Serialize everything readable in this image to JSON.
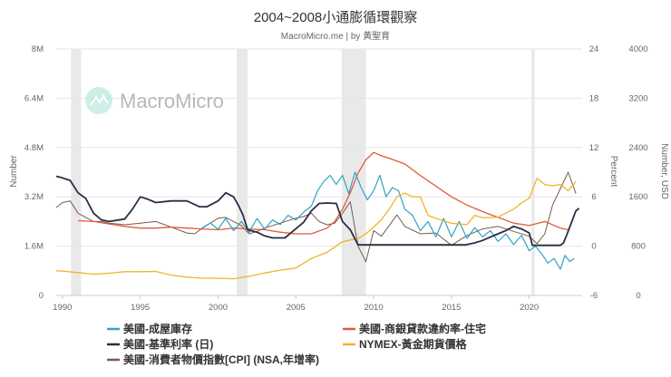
{
  "chart_data": {
    "type": "line",
    "title": "2004~2008小通膨循環觀察",
    "subtitle": "MacroMicro.me | by 黃聖育",
    "watermark": "MacroMicro",
    "x_range": [
      1989.6,
      2023.4
    ],
    "x_ticks": [
      1990,
      1995,
      2000,
      2005,
      2010,
      2015,
      2020
    ],
    "axes": {
      "left": {
        "label": "Number",
        "range": [
          0,
          8000000
        ],
        "ticks": [
          0,
          1600000,
          3200000,
          4800000,
          6400000,
          8000000
        ],
        "tick_labels": [
          "0",
          "1.6M",
          "3.2M",
          "4.8M",
          "6.4M",
          "8M"
        ]
      },
      "right1": {
        "label": "Percent",
        "range": [
          -6,
          24
        ],
        "ticks": [
          -6,
          0,
          6,
          12,
          18,
          24
        ],
        "tick_labels": [
          "-6",
          "0",
          "6",
          "12",
          "18",
          "24"
        ]
      },
      "right2": {
        "label": "Number, USD",
        "range": [
          0,
          4000
        ],
        "ticks": [
          0,
          800,
          1600,
          2400,
          3200,
          4000
        ],
        "tick_labels": [
          "0",
          "800",
          "1600",
          "2400",
          "3200",
          "4000"
        ]
      }
    },
    "recessions": [
      [
        1990.55,
        1991.2
      ],
      [
        2001.2,
        2001.9
      ],
      [
        2007.95,
        2009.5
      ],
      [
        2020.15,
        2020.35
      ]
    ],
    "series": [
      {
        "name": "美國-成屋庫存",
        "color": "#2fa4c6",
        "axis": "left",
        "width": 1.2,
        "x": [
          1999,
          1999.5,
          2000,
          2000.5,
          2001,
          2001.5,
          2002,
          2002.5,
          2003,
          2003.5,
          2004,
          2004.5,
          2005,
          2005.5,
          2006,
          2006.4,
          2006.8,
          2007.2,
          2007.6,
          2008,
          2008.4,
          2008.8,
          2009.2,
          2009.6,
          2010,
          2010.4,
          2010.8,
          2011.2,
          2011.6,
          2012,
          2012.5,
          2013,
          2013.5,
          2014,
          2014.5,
          2015,
          2015.5,
          2016,
          2016.5,
          2017,
          2017.5,
          2018,
          2018.5,
          2019,
          2019.5,
          2020,
          2020.4,
          2020.8,
          2021.2,
          2021.6,
          2022,
          2022.3,
          2022.6,
          2022.9
        ],
        "values": [
          2200000,
          2350000,
          2150000,
          2500000,
          2100000,
          2400000,
          2050000,
          2500000,
          2150000,
          2450000,
          2300000,
          2600000,
          2450000,
          2700000,
          2900000,
          3400000,
          3700000,
          3900000,
          3600000,
          3900000,
          3300000,
          4000000,
          3500000,
          3100000,
          3400000,
          3900000,
          3200000,
          3500000,
          3400000,
          2800000,
          2600000,
          2100000,
          2400000,
          1900000,
          2500000,
          1900000,
          2400000,
          1850000,
          2200000,
          1900000,
          2100000,
          1750000,
          2000000,
          1650000,
          1950000,
          1450000,
          1600000,
          1350000,
          1050000,
          1200000,
          850000,
          1300000,
          1100000,
          1200000
        ]
      },
      {
        "name": "美國-商銀貸款違約率-住宅",
        "color": "#e05a3a",
        "axis": "right1",
        "width": 1.3,
        "x": [
          1991,
          1992,
          1993,
          1994,
          1995,
          1996,
          1997,
          1998,
          1999,
          2000,
          2001,
          2002,
          2003,
          2004,
          2005,
          2006,
          2007,
          2007.5,
          2008,
          2008.5,
          2009,
          2009.5,
          2010,
          2010.5,
          2011,
          2012,
          2013,
          2014,
          2015,
          2016,
          2017,
          2018,
          2019,
          2020,
          2021,
          2022,
          2022.5
        ],
        "values": [
          3.1,
          3.0,
          2.7,
          2.4,
          2.2,
          2.2,
          2.3,
          2.2,
          2.1,
          2.0,
          2.2,
          2.1,
          2.0,
          1.7,
          1.5,
          1.5,
          2.2,
          3.0,
          4.5,
          6.5,
          8.9,
          10.5,
          11.4,
          11.0,
          10.7,
          10.0,
          8.6,
          7.3,
          6.0,
          5.0,
          4.2,
          3.5,
          2.8,
          2.5,
          3.0,
          2.2,
          2.0
        ]
      },
      {
        "name": "美國-基準利率 (日)",
        "color": "#2b2d42",
        "axis": "right1",
        "width": 1.8,
        "x": [
          1989.6,
          1990,
          1990.5,
          1991,
          1991.5,
          1992,
          1992.5,
          1993,
          1994,
          1994.5,
          1995,
          1995.5,
          1996,
          1997,
          1998,
          1998.8,
          1999.3,
          2000,
          2000.5,
          2001,
          2001.3,
          2001.6,
          2001.9,
          2002.5,
          2003,
          2003.5,
          2004.3,
          2004.8,
          2005.5,
          2006,
          2006.5,
          2007,
          2007.6,
          2008,
          2008.5,
          2009,
          2015.9,
          2016.5,
          2017,
          2017.5,
          2018,
          2018.5,
          2019,
          2019.5,
          2020,
          2020.2,
          2022,
          2022.2,
          2022.4,
          2022.6,
          2022.8,
          2023.0,
          2023.2
        ],
        "values": [
          8.5,
          8.3,
          8.0,
          6.5,
          5.8,
          4.0,
          3.2,
          3.0,
          3.3,
          4.5,
          6.0,
          5.7,
          5.3,
          5.5,
          5.5,
          4.8,
          4.8,
          5.5,
          6.5,
          6.0,
          5.0,
          3.8,
          2.0,
          1.7,
          1.25,
          1.0,
          1.0,
          1.8,
          2.9,
          4.3,
          5.2,
          5.25,
          5.2,
          3.0,
          2.0,
          0.15,
          0.15,
          0.4,
          0.7,
          1.1,
          1.5,
          1.9,
          2.4,
          2.1,
          1.6,
          0.1,
          0.1,
          0.4,
          1.3,
          2.3,
          3.3,
          4.3,
          4.6
        ]
      },
      {
        "name": "NYMEX-黃金期貨價格",
        "color": "#f0b429",
        "axis": "right2",
        "width": 1.3,
        "x": [
          1989.6,
          1990,
          1991,
          1992,
          1993,
          1994,
          1995,
          1996,
          1997,
          1998,
          1999,
          2000,
          2001,
          2002,
          2003,
          2004,
          2005,
          2006,
          2006.5,
          2007,
          2008,
          2008.5,
          2009,
          2009.5,
          2010,
          2010.5,
          2011,
          2011.5,
          2012,
          2012.5,
          2013,
          2013.5,
          2014,
          2015,
          2016,
          2016.5,
          2017,
          2018,
          2019,
          2019.5,
          2020,
          2020.5,
          2021,
          2021.5,
          2022,
          2022.5,
          2023
        ],
        "values": [
          400,
          395,
          370,
          345,
          360,
          385,
          385,
          390,
          330,
          295,
          280,
          280,
          270,
          310,
          365,
          410,
          445,
          600,
          650,
          700,
          870,
          900,
          920,
          1000,
          1110,
          1230,
          1400,
          1600,
          1660,
          1600,
          1600,
          1300,
          1250,
          1170,
          1150,
          1300,
          1260,
          1270,
          1400,
          1500,
          1580,
          1900,
          1800,
          1780,
          1800,
          1700,
          1850
        ]
      },
      {
        "name": "美國-消費者物價指數[CPI] (NSA,年增率)",
        "color": "#7a5a4a",
        "axis": "right1",
        "width": 1.0,
        "x": [
          1989.6,
          1990,
          1990.5,
          1991,
          1991.5,
          1992,
          1992.5,
          1993,
          1994,
          1995,
          1996,
          1997,
          1998,
          1998.5,
          1999,
          2000,
          2000.5,
          2001,
          2001.5,
          2002,
          2002.5,
          2003,
          2004,
          2005,
          2005.5,
          2006,
          2006.5,
          2007,
          2007.5,
          2008,
          2008.5,
          2009,
          2009.5,
          2010,
          2010.5,
          2011,
          2011.5,
          2012,
          2013,
          2014,
          2015,
          2016,
          2017,
          2018,
          2019,
          2020,
          2020.5,
          2021,
          2021.5,
          2022,
          2022.5,
          2023
        ],
        "values": [
          4.7,
          5.3,
          5.5,
          4.0,
          3.5,
          3.0,
          3.0,
          2.8,
          2.6,
          2.8,
          3.0,
          2.3,
          1.6,
          1.5,
          2.2,
          3.4,
          3.5,
          3.0,
          2.5,
          1.5,
          1.8,
          2.2,
          2.8,
          3.4,
          3.6,
          4.0,
          3.0,
          2.6,
          2.8,
          4.0,
          5.4,
          0.0,
          -1.9,
          1.9,
          1.2,
          2.5,
          3.8,
          2.4,
          1.5,
          1.6,
          0.1,
          1.3,
          2.1,
          2.4,
          1.8,
          1.2,
          0.3,
          1.5,
          5.0,
          7.0,
          9.0,
          6.4
        ]
      }
    ],
    "legend": {
      "placement": "bottom",
      "entries": [
        "美國-成屋庫存",
        "美國-商銀貸款違約率-住宅",
        "美國-基準利率 (日)",
        "NYMEX-黃金期貨價格",
        "美國-消費者物價指數[CPI] (NSA,年增率)"
      ]
    }
  }
}
